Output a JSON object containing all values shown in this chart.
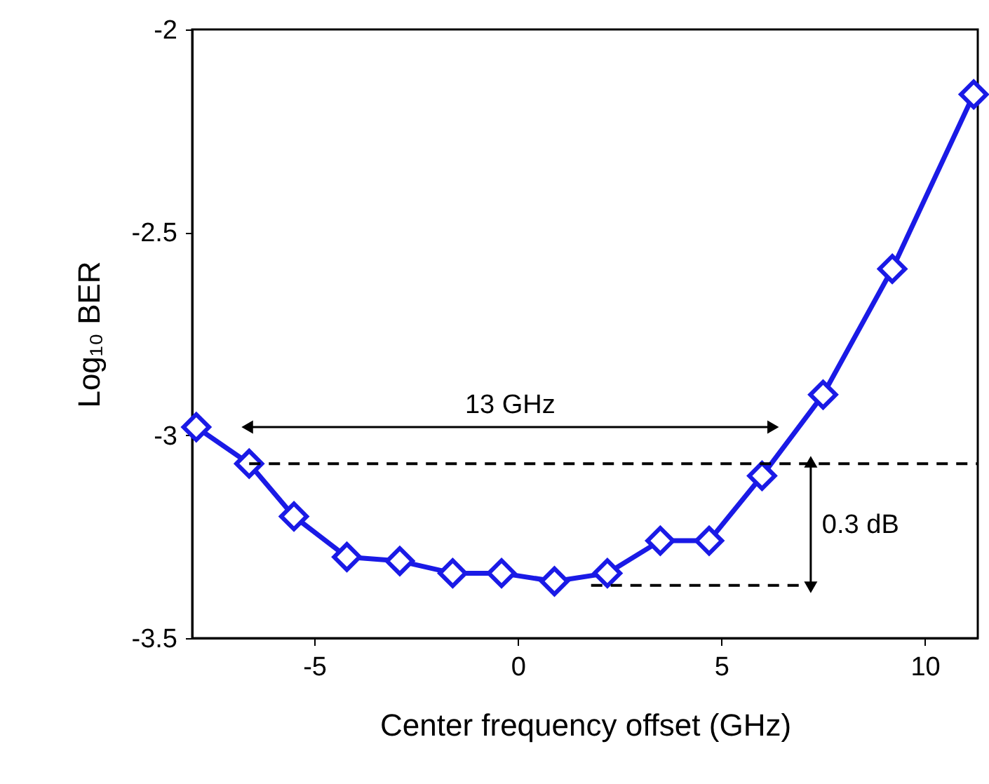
{
  "chart_data": {
    "type": "line",
    "xlabel": "Center frequency offset (GHz)",
    "ylabel": "Log₁₀ BER",
    "xlim": [
      -8,
      11.3
    ],
    "ylim": [
      -3.5,
      -2
    ],
    "xticks": [
      -5,
      0,
      5,
      10
    ],
    "yticks": [
      -3.5,
      -3,
      -2.5,
      -2
    ],
    "series": [
      {
        "color": "#1a1ae6",
        "marker": "diamond",
        "line_style": "solid",
        "x": [
          -7.9,
          -6.6,
          -5.5,
          -4.2,
          -2.9,
          -1.6,
          -0.4,
          0.9,
          2.2,
          3.5,
          4.7,
          6.0,
          7.5,
          9.2,
          11.2
        ],
        "values": [
          -2.98,
          -3.07,
          -3.2,
          -3.3,
          -3.31,
          -3.34,
          -3.34,
          -3.36,
          -3.34,
          -3.26,
          -3.26,
          -3.1,
          -2.9,
          -2.59,
          -2.16
        ]
      },
      {
        "type": "line",
        "color": "#000000",
        "marker": "none",
        "line_style": "dashed",
        "x": [
          -6.6,
          11.3
        ],
        "values": [
          -3.07,
          -3.07
        ]
      },
      {
        "type": "line",
        "color": "#000000",
        "marker": "none",
        "line_style": "dashed",
        "x": [
          1.8,
          7.1
        ],
        "values": [
          -3.37,
          -3.37
        ]
      }
    ],
    "annotations": [
      "13 GHz",
      "0.3 dB"
    ]
  }
}
